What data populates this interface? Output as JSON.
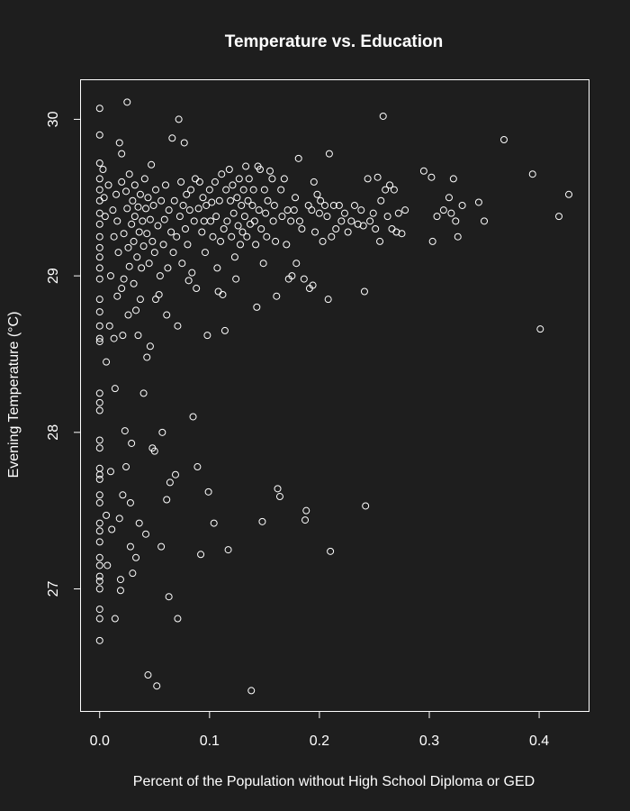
{
  "colors": {
    "background": "#1e1e1e",
    "foreground": "#ffffff"
  },
  "chart_data": {
    "type": "scatter",
    "title": "Temperature vs. Education",
    "xlabel": "Percent of the Population without High School Diploma or GED",
    "ylabel": "Evening Temperature (°C)",
    "xlim": [
      -0.017,
      0.445
    ],
    "ylim": [
      26.22,
      30.25
    ],
    "xticks": [
      0.0,
      0.1,
      0.2,
      0.3,
      0.4
    ],
    "xtick_labels": [
      "0.0",
      "0.1",
      "0.2",
      "0.3",
      "0.4"
    ],
    "yticks": [
      27,
      28,
      29,
      30
    ],
    "ytick_labels": [
      "27",
      "28",
      "29",
      "30"
    ],
    "marker": "open-circle",
    "grid": false,
    "legend": "none",
    "points": [
      [
        0.0,
        30.07
      ],
      [
        0.0,
        29.9
      ],
      [
        0.0,
        29.72
      ],
      [
        0.0,
        29.62
      ],
      [
        0.0,
        29.55
      ],
      [
        0.0,
        29.48
      ],
      [
        0.0,
        29.4
      ],
      [
        0.0,
        29.33
      ],
      [
        0.0,
        29.25
      ],
      [
        0.0,
        29.18
      ],
      [
        0.0,
        29.12
      ],
      [
        0.0,
        29.05
      ],
      [
        0.0,
        28.98
      ],
      [
        0.0,
        28.85
      ],
      [
        0.0,
        28.77
      ],
      [
        0.0,
        28.68
      ],
      [
        0.0,
        28.6
      ],
      [
        0.0,
        28.58
      ],
      [
        0.0,
        28.25
      ],
      [
        0.0,
        28.19
      ],
      [
        0.0,
        28.14
      ],
      [
        0.0,
        27.95
      ],
      [
        0.0,
        27.9
      ],
      [
        0.0,
        27.77
      ],
      [
        0.0,
        27.73
      ],
      [
        0.0,
        27.7
      ],
      [
        0.0,
        27.6
      ],
      [
        0.0,
        27.55
      ],
      [
        0.0,
        27.42
      ],
      [
        0.0,
        27.37
      ],
      [
        0.0,
        27.3
      ],
      [
        0.0,
        27.2
      ],
      [
        0.0,
        27.15
      ],
      [
        0.0,
        27.08
      ],
      [
        0.0,
        27.05
      ],
      [
        0.0,
        27.0
      ],
      [
        0.0,
        26.87
      ],
      [
        0.0,
        26.81
      ],
      [
        0.0,
        26.67
      ],
      [
        0.003,
        29.68
      ],
      [
        0.004,
        29.5
      ],
      [
        0.005,
        29.38
      ],
      [
        0.006,
        28.45
      ],
      [
        0.006,
        27.47
      ],
      [
        0.007,
        27.15
      ],
      [
        0.008,
        29.58
      ],
      [
        0.009,
        28.68
      ],
      [
        0.01,
        29.0
      ],
      [
        0.01,
        27.75
      ],
      [
        0.011,
        27.38
      ],
      [
        0.012,
        29.42
      ],
      [
        0.013,
        29.25
      ],
      [
        0.013,
        28.6
      ],
      [
        0.014,
        28.28
      ],
      [
        0.014,
        26.81
      ],
      [
        0.015,
        29.52
      ],
      [
        0.016,
        29.35
      ],
      [
        0.016,
        28.87
      ],
      [
        0.017,
        29.15
      ],
      [
        0.018,
        29.85
      ],
      [
        0.018,
        27.45
      ],
      [
        0.019,
        27.06
      ],
      [
        0.019,
        26.99
      ],
      [
        0.02,
        29.78
      ],
      [
        0.02,
        29.6
      ],
      [
        0.02,
        28.92
      ],
      [
        0.021,
        28.62
      ],
      [
        0.021,
        27.6
      ],
      [
        0.022,
        29.27
      ],
      [
        0.022,
        28.98
      ],
      [
        0.023,
        28.01
      ],
      [
        0.024,
        29.54
      ],
      [
        0.024,
        27.78
      ],
      [
        0.025,
        30.11
      ],
      [
        0.025,
        29.43
      ],
      [
        0.026,
        29.18
      ],
      [
        0.026,
        28.75
      ],
      [
        0.027,
        29.65
      ],
      [
        0.027,
        29.06
      ],
      [
        0.028,
        27.55
      ],
      [
        0.028,
        27.27
      ],
      [
        0.029,
        29.33
      ],
      [
        0.029,
        27.93
      ],
      [
        0.03,
        29.48
      ],
      [
        0.03,
        27.1
      ],
      [
        0.031,
        29.22
      ],
      [
        0.031,
        28.95
      ],
      [
        0.032,
        29.58
      ],
      [
        0.032,
        29.38
      ],
      [
        0.033,
        28.78
      ],
      [
        0.033,
        27.2
      ],
      [
        0.034,
        29.12
      ],
      [
        0.035,
        29.44
      ],
      [
        0.035,
        28.62
      ],
      [
        0.036,
        29.28
      ],
      [
        0.036,
        27.42
      ],
      [
        0.037,
        29.52
      ],
      [
        0.037,
        28.85
      ],
      [
        0.038,
        29.05
      ],
      [
        0.039,
        29.35
      ],
      [
        0.04,
        29.19
      ],
      [
        0.04,
        28.25
      ],
      [
        0.041,
        29.62
      ],
      [
        0.042,
        29.43
      ],
      [
        0.042,
        27.35
      ],
      [
        0.043,
        29.27
      ],
      [
        0.043,
        28.48
      ],
      [
        0.044,
        29.5
      ],
      [
        0.044,
        26.45
      ],
      [
        0.045,
        29.08
      ],
      [
        0.046,
        29.36
      ],
      [
        0.046,
        28.55
      ],
      [
        0.047,
        29.71
      ],
      [
        0.048,
        29.22
      ],
      [
        0.048,
        27.9
      ],
      [
        0.049,
        29.45
      ],
      [
        0.05,
        29.15
      ],
      [
        0.05,
        27.88
      ],
      [
        0.051,
        29.55
      ],
      [
        0.051,
        28.85
      ],
      [
        0.052,
        26.38
      ],
      [
        0.053,
        29.32
      ],
      [
        0.054,
        28.88
      ],
      [
        0.055,
        29.0
      ],
      [
        0.056,
        29.48
      ],
      [
        0.056,
        27.27
      ],
      [
        0.057,
        28.0
      ],
      [
        0.058,
        29.2
      ],
      [
        0.059,
        29.36
      ],
      [
        0.06,
        29.58
      ],
      [
        0.061,
        28.75
      ],
      [
        0.061,
        27.57
      ],
      [
        0.062,
        29.05
      ],
      [
        0.063,
        29.42
      ],
      [
        0.063,
        26.95
      ],
      [
        0.064,
        27.68
      ],
      [
        0.065,
        29.28
      ],
      [
        0.066,
        29.88
      ],
      [
        0.067,
        29.15
      ],
      [
        0.068,
        29.48
      ],
      [
        0.069,
        27.73
      ],
      [
        0.07,
        29.25
      ],
      [
        0.071,
        28.68
      ],
      [
        0.071,
        26.81
      ],
      [
        0.072,
        30.0
      ],
      [
        0.073,
        29.38
      ],
      [
        0.074,
        29.6
      ],
      [
        0.075,
        29.08
      ],
      [
        0.076,
        29.45
      ],
      [
        0.077,
        29.85
      ],
      [
        0.078,
        29.3
      ],
      [
        0.079,
        29.52
      ],
      [
        0.08,
        29.2
      ],
      [
        0.081,
        28.97
      ],
      [
        0.082,
        29.42
      ],
      [
        0.083,
        29.55
      ],
      [
        0.084,
        29.02
      ],
      [
        0.085,
        28.1
      ],
      [
        0.086,
        29.35
      ],
      [
        0.087,
        29.62
      ],
      [
        0.088,
        28.92
      ],
      [
        0.089,
        27.78
      ],
      [
        0.09,
        29.43
      ],
      [
        0.091,
        29.6
      ],
      [
        0.092,
        27.22
      ],
      [
        0.093,
        29.28
      ],
      [
        0.094,
        29.5
      ],
      [
        0.095,
        29.35
      ],
      [
        0.096,
        29.15
      ],
      [
        0.097,
        29.45
      ],
      [
        0.098,
        28.62
      ],
      [
        0.099,
        27.62
      ],
      [
        0.1,
        29.55
      ],
      [
        0.101,
        29.35
      ],
      [
        0.102,
        29.47
      ],
      [
        0.103,
        29.25
      ],
      [
        0.104,
        27.42
      ],
      [
        0.105,
        29.6
      ],
      [
        0.106,
        29.38
      ],
      [
        0.107,
        29.05
      ],
      [
        0.108,
        28.9
      ],
      [
        0.109,
        29.48
      ],
      [
        0.11,
        29.22
      ],
      [
        0.111,
        29.65
      ],
      [
        0.112,
        28.88
      ],
      [
        0.113,
        29.3
      ],
      [
        0.114,
        28.65
      ],
      [
        0.115,
        29.55
      ],
      [
        0.116,
        29.35
      ],
      [
        0.117,
        27.25
      ],
      [
        0.118,
        29.68
      ],
      [
        0.119,
        29.48
      ],
      [
        0.12,
        29.25
      ],
      [
        0.121,
        29.58
      ],
      [
        0.122,
        29.4
      ],
      [
        0.123,
        29.12
      ],
      [
        0.124,
        28.98
      ],
      [
        0.125,
        29.5
      ],
      [
        0.126,
        29.32
      ],
      [
        0.127,
        29.62
      ],
      [
        0.128,
        29.2
      ],
      [
        0.129,
        29.45
      ],
      [
        0.13,
        29.28
      ],
      [
        0.131,
        29.55
      ],
      [
        0.132,
        29.38
      ],
      [
        0.133,
        29.7
      ],
      [
        0.134,
        29.25
      ],
      [
        0.135,
        29.48
      ],
      [
        0.136,
        29.62
      ],
      [
        0.137,
        29.33
      ],
      [
        0.138,
        26.35
      ],
      [
        0.139,
        29.45
      ],
      [
        0.14,
        29.55
      ],
      [
        0.141,
        29.35
      ],
      [
        0.142,
        29.2
      ],
      [
        0.143,
        28.8
      ],
      [
        0.144,
        29.7
      ],
      [
        0.145,
        29.42
      ],
      [
        0.146,
        29.68
      ],
      [
        0.147,
        29.3
      ],
      [
        0.148,
        27.43
      ],
      [
        0.149,
        29.08
      ],
      [
        0.15,
        29.55
      ],
      [
        0.151,
        29.4
      ],
      [
        0.152,
        29.25
      ],
      [
        0.153,
        29.48
      ],
      [
        0.155,
        29.67
      ],
      [
        0.157,
        29.62
      ],
      [
        0.158,
        29.35
      ],
      [
        0.159,
        29.45
      ],
      [
        0.16,
        29.22
      ],
      [
        0.161,
        28.87
      ],
      [
        0.162,
        27.64
      ],
      [
        0.164,
        27.59
      ],
      [
        0.165,
        29.55
      ],
      [
        0.166,
        29.38
      ],
      [
        0.168,
        29.62
      ],
      [
        0.17,
        29.2
      ],
      [
        0.171,
        29.42
      ],
      [
        0.172,
        28.98
      ],
      [
        0.174,
        29.35
      ],
      [
        0.175,
        29.0
      ],
      [
        0.177,
        29.42
      ],
      [
        0.178,
        29.5
      ],
      [
        0.179,
        29.08
      ],
      [
        0.181,
        29.75
      ],
      [
        0.182,
        29.35
      ],
      [
        0.184,
        29.3
      ],
      [
        0.186,
        28.98
      ],
      [
        0.187,
        27.44
      ],
      [
        0.188,
        27.5
      ],
      [
        0.19,
        29.45
      ],
      [
        0.191,
        28.92
      ],
      [
        0.193,
        29.42
      ],
      [
        0.194,
        28.94
      ],
      [
        0.195,
        29.6
      ],
      [
        0.196,
        29.28
      ],
      [
        0.198,
        29.52
      ],
      [
        0.2,
        29.4
      ],
      [
        0.201,
        29.48
      ],
      [
        0.203,
        29.22
      ],
      [
        0.205,
        29.45
      ],
      [
        0.207,
        29.38
      ],
      [
        0.208,
        28.85
      ],
      [
        0.209,
        29.78
      ],
      [
        0.21,
        27.24
      ],
      [
        0.211,
        29.25
      ],
      [
        0.213,
        29.45
      ],
      [
        0.215,
        29.3
      ],
      [
        0.218,
        29.45
      ],
      [
        0.22,
        29.35
      ],
      [
        0.223,
        29.4
      ],
      [
        0.226,
        29.28
      ],
      [
        0.229,
        29.35
      ],
      [
        0.232,
        29.45
      ],
      [
        0.235,
        29.33
      ],
      [
        0.238,
        29.42
      ],
      [
        0.24,
        29.32
      ],
      [
        0.241,
        28.9
      ],
      [
        0.242,
        27.53
      ],
      [
        0.244,
        29.62
      ],
      [
        0.246,
        29.35
      ],
      [
        0.249,
        29.4
      ],
      [
        0.251,
        29.3
      ],
      [
        0.253,
        29.63
      ],
      [
        0.255,
        29.22
      ],
      [
        0.256,
        29.48
      ],
      [
        0.258,
        30.02
      ],
      [
        0.26,
        29.55
      ],
      [
        0.262,
        29.38
      ],
      [
        0.264,
        29.58
      ],
      [
        0.266,
        29.3
      ],
      [
        0.268,
        29.55
      ],
      [
        0.27,
        29.28
      ],
      [
        0.272,
        29.4
      ],
      [
        0.275,
        29.27
      ],
      [
        0.278,
        29.42
      ],
      [
        0.295,
        29.67
      ],
      [
        0.302,
        29.63
      ],
      [
        0.303,
        29.22
      ],
      [
        0.307,
        29.38
      ],
      [
        0.313,
        29.42
      ],
      [
        0.318,
        29.5
      ],
      [
        0.32,
        29.4
      ],
      [
        0.322,
        29.62
      ],
      [
        0.324,
        29.35
      ],
      [
        0.326,
        29.25
      ],
      [
        0.33,
        29.45
      ],
      [
        0.345,
        29.47
      ],
      [
        0.35,
        29.35
      ],
      [
        0.368,
        29.87
      ],
      [
        0.394,
        29.65
      ],
      [
        0.401,
        28.66
      ],
      [
        0.418,
        29.38
      ],
      [
        0.427,
        29.52
      ]
    ]
  }
}
